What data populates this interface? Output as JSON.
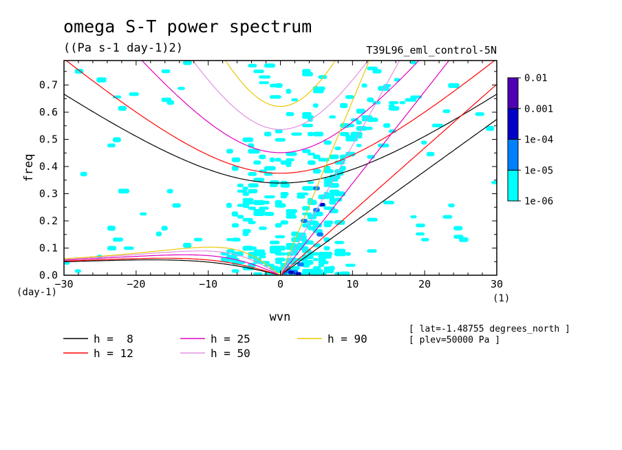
{
  "chart_data": {
    "type": "heatmap",
    "title": "omega S-T power spectrum",
    "units": "((Pa s-1 day-1)2)",
    "dataset": "T39L96_eml_control-5N",
    "xlabel": "wvn",
    "xunit": "(1)",
    "ylabel": "freq",
    "yunit": "(day-1)",
    "xlim": [
      -30,
      30
    ],
    "ylim": [
      0,
      0.79
    ],
    "xticks": [
      -30,
      -20,
      -10,
      0,
      10,
      20,
      30
    ],
    "yticks": [
      0.0,
      0.1,
      0.2,
      0.3,
      0.4,
      0.5,
      0.6,
      0.7
    ],
    "colorbar": {
      "labels": [
        "0.01",
        "0.001",
        "1e-04",
        "1e-05",
        "1e-06"
      ],
      "levels": [
        {
          "range": "1e-06 to 1e-05",
          "color": "#00ffff"
        },
        {
          "range": "1e-05 to 1e-04",
          "color": "#0080ff"
        },
        {
          "range": "1e-04 to 0.001",
          "color": "#0000c8"
        },
        {
          "range": "0.001 to 0.01",
          "color": "#5000b4"
        }
      ]
    },
    "dispersion_curves": [
      {
        "name": "h =  8",
        "h": 8,
        "color": "#000000"
      },
      {
        "name": "h = 12",
        "h": 12,
        "color": "#ff0000"
      },
      {
        "name": "h = 25",
        "h": 25,
        "color": "#e000c0"
      },
      {
        "name": "h = 50",
        "h": 50,
        "color": "#e090e0"
      },
      {
        "name": "h = 90",
        "h": 90,
        "color": "#e8c800"
      }
    ],
    "notes": [
      "[ lat=-1.48755 degrees_north ]",
      "[ plev=50000 Pa ]"
    ]
  }
}
